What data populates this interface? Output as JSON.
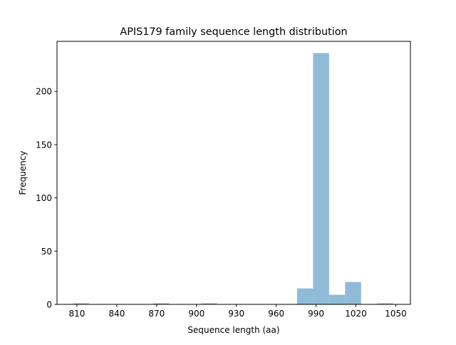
{
  "chart_data": {
    "type": "bar",
    "title": "APIS179 family sequence length distribution",
    "xlabel": "Sequence length (aa)",
    "ylabel": "Frequency",
    "bin_start": 807.0,
    "bin_width": 12.05,
    "counts": [
      1,
      0,
      0,
      0,
      0,
      1,
      0,
      0,
      1,
      0,
      0,
      0,
      0,
      0,
      15,
      236,
      9,
      21,
      0,
      1
    ],
    "xlim": [
      795,
      1061
    ],
    "ylim": [
      0,
      247
    ],
    "xticks": [
      810,
      840,
      870,
      900,
      930,
      960,
      990,
      1020,
      1050
    ],
    "yticks": [
      0,
      50,
      100,
      150,
      200
    ],
    "grid": false,
    "bar_color": "#1f77b4",
    "bar_alpha": 0.5
  }
}
